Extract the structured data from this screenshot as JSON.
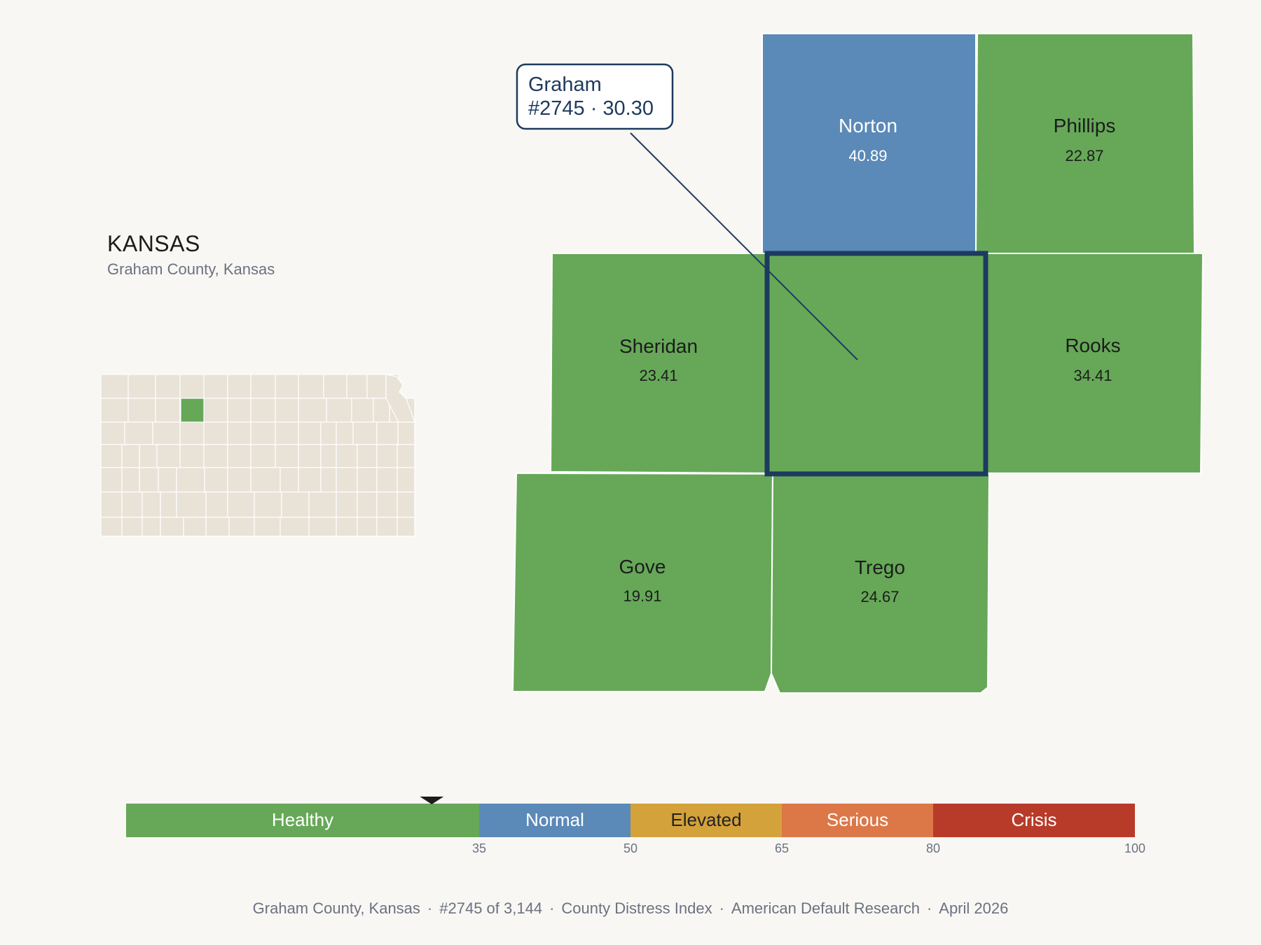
{
  "state": {
    "name": "KANSAS",
    "subtitle": "Graham County, Kansas"
  },
  "callout": {
    "name": "Graham",
    "detail": "#2745 · 30.30"
  },
  "selected_county": {
    "name": "Graham",
    "value": 30.3,
    "color": "#66a858"
  },
  "neighbors": [
    {
      "id": "norton",
      "name": "Norton",
      "value": "40.89",
      "category": "Normal",
      "color": "#5b89b8"
    },
    {
      "id": "phillips",
      "name": "Phillips",
      "value": "22.87",
      "category": "Healthy",
      "color": "#66a858"
    },
    {
      "id": "sheridan",
      "name": "Sheridan",
      "value": "23.41",
      "category": "Healthy",
      "color": "#66a858"
    },
    {
      "id": "rooks",
      "name": "Rooks",
      "value": "34.41",
      "category": "Healthy",
      "color": "#66a858"
    },
    {
      "id": "gove",
      "name": "Gove",
      "value": "19.91",
      "category": "Healthy",
      "color": "#66a858"
    },
    {
      "id": "trego",
      "name": "Trego",
      "value": "24.67",
      "category": "Healthy",
      "color": "#66a858"
    }
  ],
  "scale": {
    "min": 0,
    "max": 100,
    "marker_value": 30.3,
    "bands": [
      {
        "label": "Healthy",
        "from": 0,
        "to": 35,
        "color": "#66a858",
        "text_color": "#ffffff"
      },
      {
        "label": "Normal",
        "from": 35,
        "to": 50,
        "color": "#5b89b8",
        "text_color": "#ffffff"
      },
      {
        "label": "Elevated",
        "from": 50,
        "to": 65,
        "color": "#d4a23a",
        "text_color": "#222222"
      },
      {
        "label": "Serious",
        "from": 65,
        "to": 80,
        "color": "#dc7748",
        "text_color": "#ffffff"
      },
      {
        "label": "Crisis",
        "from": 80,
        "to": 100,
        "color": "#b83b2a",
        "text_color": "#ffffff"
      }
    ],
    "ticks": [
      "35",
      "50",
      "65",
      "80",
      "100"
    ]
  },
  "footer": [
    "Graham County, Kansas",
    "#2745 of 3,144",
    "County Distress Index",
    "American Default Research",
    "April 2026"
  ],
  "colors": {
    "county_fill": "#e8e2d7",
    "county_stroke": "#ffffff",
    "highlight_stroke": "#1d3a5f",
    "background": "#f9f7f4"
  }
}
